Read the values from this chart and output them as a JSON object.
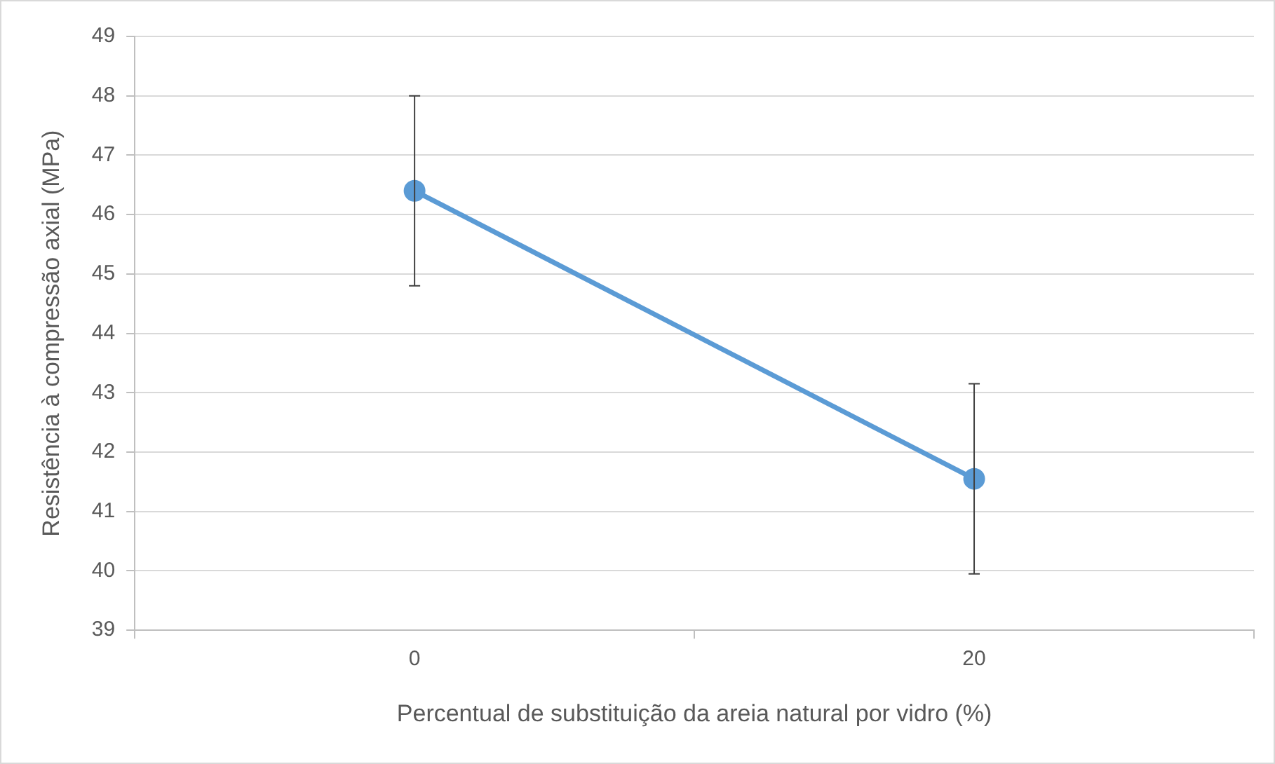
{
  "chart_data": {
    "type": "line",
    "xlabel": "Percentual de substituição da areia natural por vidro (%)",
    "ylabel": "Resistência à compressão axial (MPa)",
    "categories": [
      "0",
      "20"
    ],
    "values": [
      46.4,
      41.55
    ],
    "errors": [
      1.6,
      1.6
    ],
    "color": "#5b9bd5",
    "ylim": [
      39,
      49
    ],
    "yticks": [
      39,
      40,
      41,
      42,
      43,
      44,
      45,
      46,
      47,
      48,
      49
    ],
    "grid": "y",
    "marker": "circle"
  }
}
